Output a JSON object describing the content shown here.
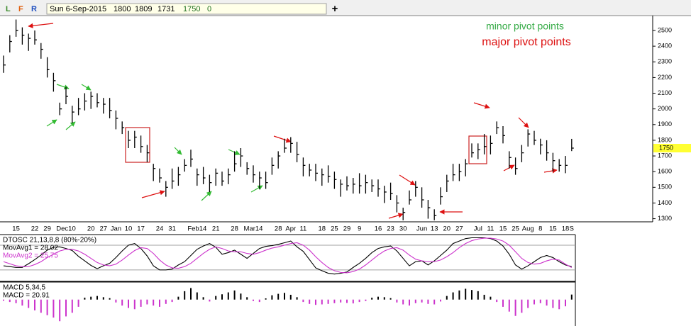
{
  "toolbar": {
    "buttons": [
      "L",
      "F",
      "R"
    ],
    "date": "Sun 6-Sep-2015",
    "open": 1800,
    "high": 1809,
    "low": 1731,
    "close": 1750,
    "volume": 0,
    "add_button": "+"
  },
  "chart_data": [
    {
      "type": "ohlc",
      "color": "#000000",
      "grid": false,
      "annotations": [
        {
          "text": "minor pivot points",
          "color": "#33aa44"
        },
        {
          "text": "major pivot points",
          "color": "#dd1111"
        }
      ],
      "categories": [
        null,
        null,
        "15",
        null,
        null,
        "22",
        null,
        "29",
        null,
        null,
        "Dec10",
        null,
        null,
        null,
        "20",
        null,
        "27",
        null,
        "Jan",
        null,
        "10",
        null,
        "17",
        null,
        null,
        "24",
        null,
        "31",
        null,
        null,
        null,
        "Feb14",
        null,
        null,
        "21",
        null,
        null,
        "28",
        null,
        null,
        "Mar14",
        null,
        null,
        null,
        "28",
        null,
        "Apr",
        null,
        "11",
        null,
        null,
        "18",
        null,
        "25",
        null,
        "29",
        null,
        "9",
        null,
        null,
        "16",
        null,
        "23",
        null,
        "30",
        null,
        null,
        "Jun",
        null,
        "13",
        null,
        "20",
        null,
        "27",
        null,
        null,
        "Jul",
        null,
        "11",
        null,
        "15",
        null,
        "25",
        null,
        "Aug",
        null,
        "8",
        null,
        "15",
        null,
        "18",
        "S"
      ],
      "high": [
        2340,
        2470,
        2570,
        2520,
        2480,
        2500,
        2420,
        2330,
        2230,
        2040,
        2140,
        2020,
        2070,
        2100,
        2110,
        2100,
        2070,
        2070,
        1990,
        1920,
        1860,
        1860,
        1830,
        1770,
        1650,
        1620,
        1540,
        1620,
        1630,
        1680,
        1740,
        1620,
        1630,
        1580,
        1620,
        1600,
        1620,
        1730,
        1750,
        1660,
        1640,
        1600,
        1600,
        1690,
        1730,
        1810,
        1820,
        1790,
        1690,
        1650,
        1650,
        1620,
        1640,
        1600,
        1550,
        1570,
        1560,
        1590,
        1580,
        1550,
        1550,
        1510,
        1530,
        1450,
        1370,
        1480,
        1540,
        1500,
        1420,
        1360,
        1500,
        1580,
        1650,
        1650,
        1680,
        1780,
        1780,
        1840,
        1830,
        1920,
        1890,
        1730,
        1690,
        1770,
        1870,
        1860,
        1810,
        1800,
        1720,
        1680,
        1700,
        1809
      ],
      "low": [
        2230,
        2360,
        2460,
        2410,
        2370,
        2410,
        2320,
        2200,
        2110,
        1960,
        2030,
        1910,
        1960,
        1990,
        2000,
        2010,
        1970,
        1940,
        1870,
        1840,
        1750,
        1750,
        1720,
        1660,
        1540,
        1530,
        1440,
        1490,
        1510,
        1600,
        1630,
        1510,
        1520,
        1470,
        1510,
        1510,
        1520,
        1600,
        1630,
        1580,
        1530,
        1490,
        1490,
        1580,
        1620,
        1720,
        1720,
        1660,
        1570,
        1570,
        1540,
        1510,
        1530,
        1490,
        1440,
        1480,
        1460,
        1460,
        1460,
        1470,
        1440,
        1400,
        1420,
        1340,
        1290,
        1390,
        1440,
        1370,
        1300,
        1290,
        1390,
        1470,
        1540,
        1540,
        1570,
        1690,
        1680,
        1710,
        1710,
        1840,
        1780,
        1620,
        1580,
        1660,
        1760,
        1770,
        1710,
        1670,
        1600,
        1600,
        1590,
        1731
      ],
      "close": [
        2280,
        2430,
        2500,
        2470,
        2450,
        2440,
        2380,
        2250,
        2180,
        2000,
        2080,
        1980,
        2000,
        2050,
        2080,
        2040,
        2030,
        1990,
        1940,
        1880,
        1800,
        1820,
        1760,
        1720,
        1620,
        1560,
        1500,
        1540,
        1580,
        1640,
        1680,
        1580,
        1560,
        1530,
        1590,
        1540,
        1580,
        1650,
        1700,
        1620,
        1580,
        1560,
        1530,
        1640,
        1700,
        1750,
        1780,
        1710,
        1640,
        1610,
        1590,
        1580,
        1570,
        1550,
        1520,
        1510,
        1520,
        1510,
        1530,
        1510,
        1490,
        1470,
        1460,
        1400,
        1340,
        1420,
        1500,
        1420,
        1370,
        1320,
        1440,
        1540,
        1580,
        1600,
        1650,
        1720,
        1740,
        1760,
        1780,
        1880,
        1830,
        1690,
        1620,
        1720,
        1840,
        1800,
        1770,
        1720,
        1670,
        1640,
        1640,
        1750
      ],
      "ylim": [
        1280,
        2595
      ],
      "yticks": [
        1300,
        1400,
        1500,
        1600,
        1700,
        1800,
        1900,
        2000,
        2100,
        2200,
        2300,
        2400,
        2500
      ]
    },
    {
      "type": "line",
      "title": "DTOSC 21,13,8,8 (80%-20%)",
      "levels": [
        20,
        80
      ],
      "ylim": [
        -6,
        104
      ],
      "series": [
        {
          "name": "MovAvg1 = 28.02",
          "color": "#000000",
          "values": [
            30,
            28,
            26,
            26,
            35,
            45,
            56,
            68,
            75,
            76,
            72,
            67,
            53,
            42,
            31,
            23,
            30,
            36,
            50,
            66,
            80,
            84,
            72,
            54,
            30,
            20,
            20,
            22,
            32,
            40,
            55,
            70,
            78,
            84,
            75,
            58,
            62,
            68,
            58,
            48,
            60,
            72,
            77,
            79,
            82,
            86,
            90,
            76,
            65,
            45,
            25,
            18,
            12,
            10,
            12,
            15,
            26,
            36,
            48,
            62,
            72,
            76,
            78,
            66,
            48,
            30,
            40,
            42,
            32,
            42,
            55,
            68,
            84,
            90,
            96,
            98,
            98,
            98,
            96,
            90,
            78,
            58,
            32,
            22,
            30,
            40,
            50,
            55,
            50,
            40,
            32,
            28.02
          ]
        },
        {
          "name": "MovAvg2 = 25.75",
          "color": "#cc33cc",
          "values": [
            40,
            35,
            30,
            28,
            28,
            33,
            40,
            50,
            58,
            66,
            70,
            70,
            66,
            58,
            48,
            38,
            32,
            30,
            34,
            44,
            56,
            67,
            74,
            72,
            60,
            44,
            32,
            25,
            24,
            28,
            36,
            48,
            60,
            70,
            76,
            72,
            66,
            64,
            64,
            60,
            58,
            62,
            68,
            73,
            76,
            80,
            84,
            86,
            80,
            68,
            52,
            38,
            26,
            18,
            14,
            13,
            16,
            22,
            32,
            44,
            56,
            66,
            72,
            74,
            68,
            56,
            46,
            42,
            40,
            40,
            44,
            52,
            62,
            74,
            84,
            91,
            95,
            97,
            97,
            95,
            90,
            80,
            64,
            48,
            38,
            34,
            36,
            42,
            46,
            44,
            34,
            25.75
          ]
        }
      ]
    },
    {
      "type": "bar",
      "title": "MACD 5,34,5",
      "ylim": [
        -110,
        70
      ],
      "series": [
        {
          "name": "MACD = 20.91",
          "color": "#000000",
          "negative_color": "#cc33cc",
          "values": [
            -5,
            -10,
            -15,
            -25,
            -35,
            -45,
            -55,
            -65,
            -75,
            -90,
            -70,
            -55,
            -30,
            8,
            12,
            15,
            10,
            6,
            -12,
            -25,
            -35,
            -40,
            -30,
            -20,
            -25,
            -30,
            -18,
            -10,
            12,
            35,
            48,
            30,
            10,
            -8,
            15,
            22,
            30,
            38,
            25,
            10,
            -6,
            -10,
            5,
            18,
            24,
            28,
            20,
            10,
            -10,
            -18,
            -22,
            -20,
            -18,
            -15,
            -12,
            -14,
            -16,
            -10,
            -6,
            8,
            12,
            10,
            6,
            -12,
            -20,
            -25,
            -15,
            -12,
            -18,
            -20,
            -8,
            15,
            30,
            38,
            45,
            40,
            35,
            20,
            12,
            -10,
            -30,
            -50,
            -68,
            -55,
            -35,
            -20,
            -15,
            -25,
            -35,
            -40,
            -28,
            20.91
          ]
        }
      ]
    }
  ]
}
